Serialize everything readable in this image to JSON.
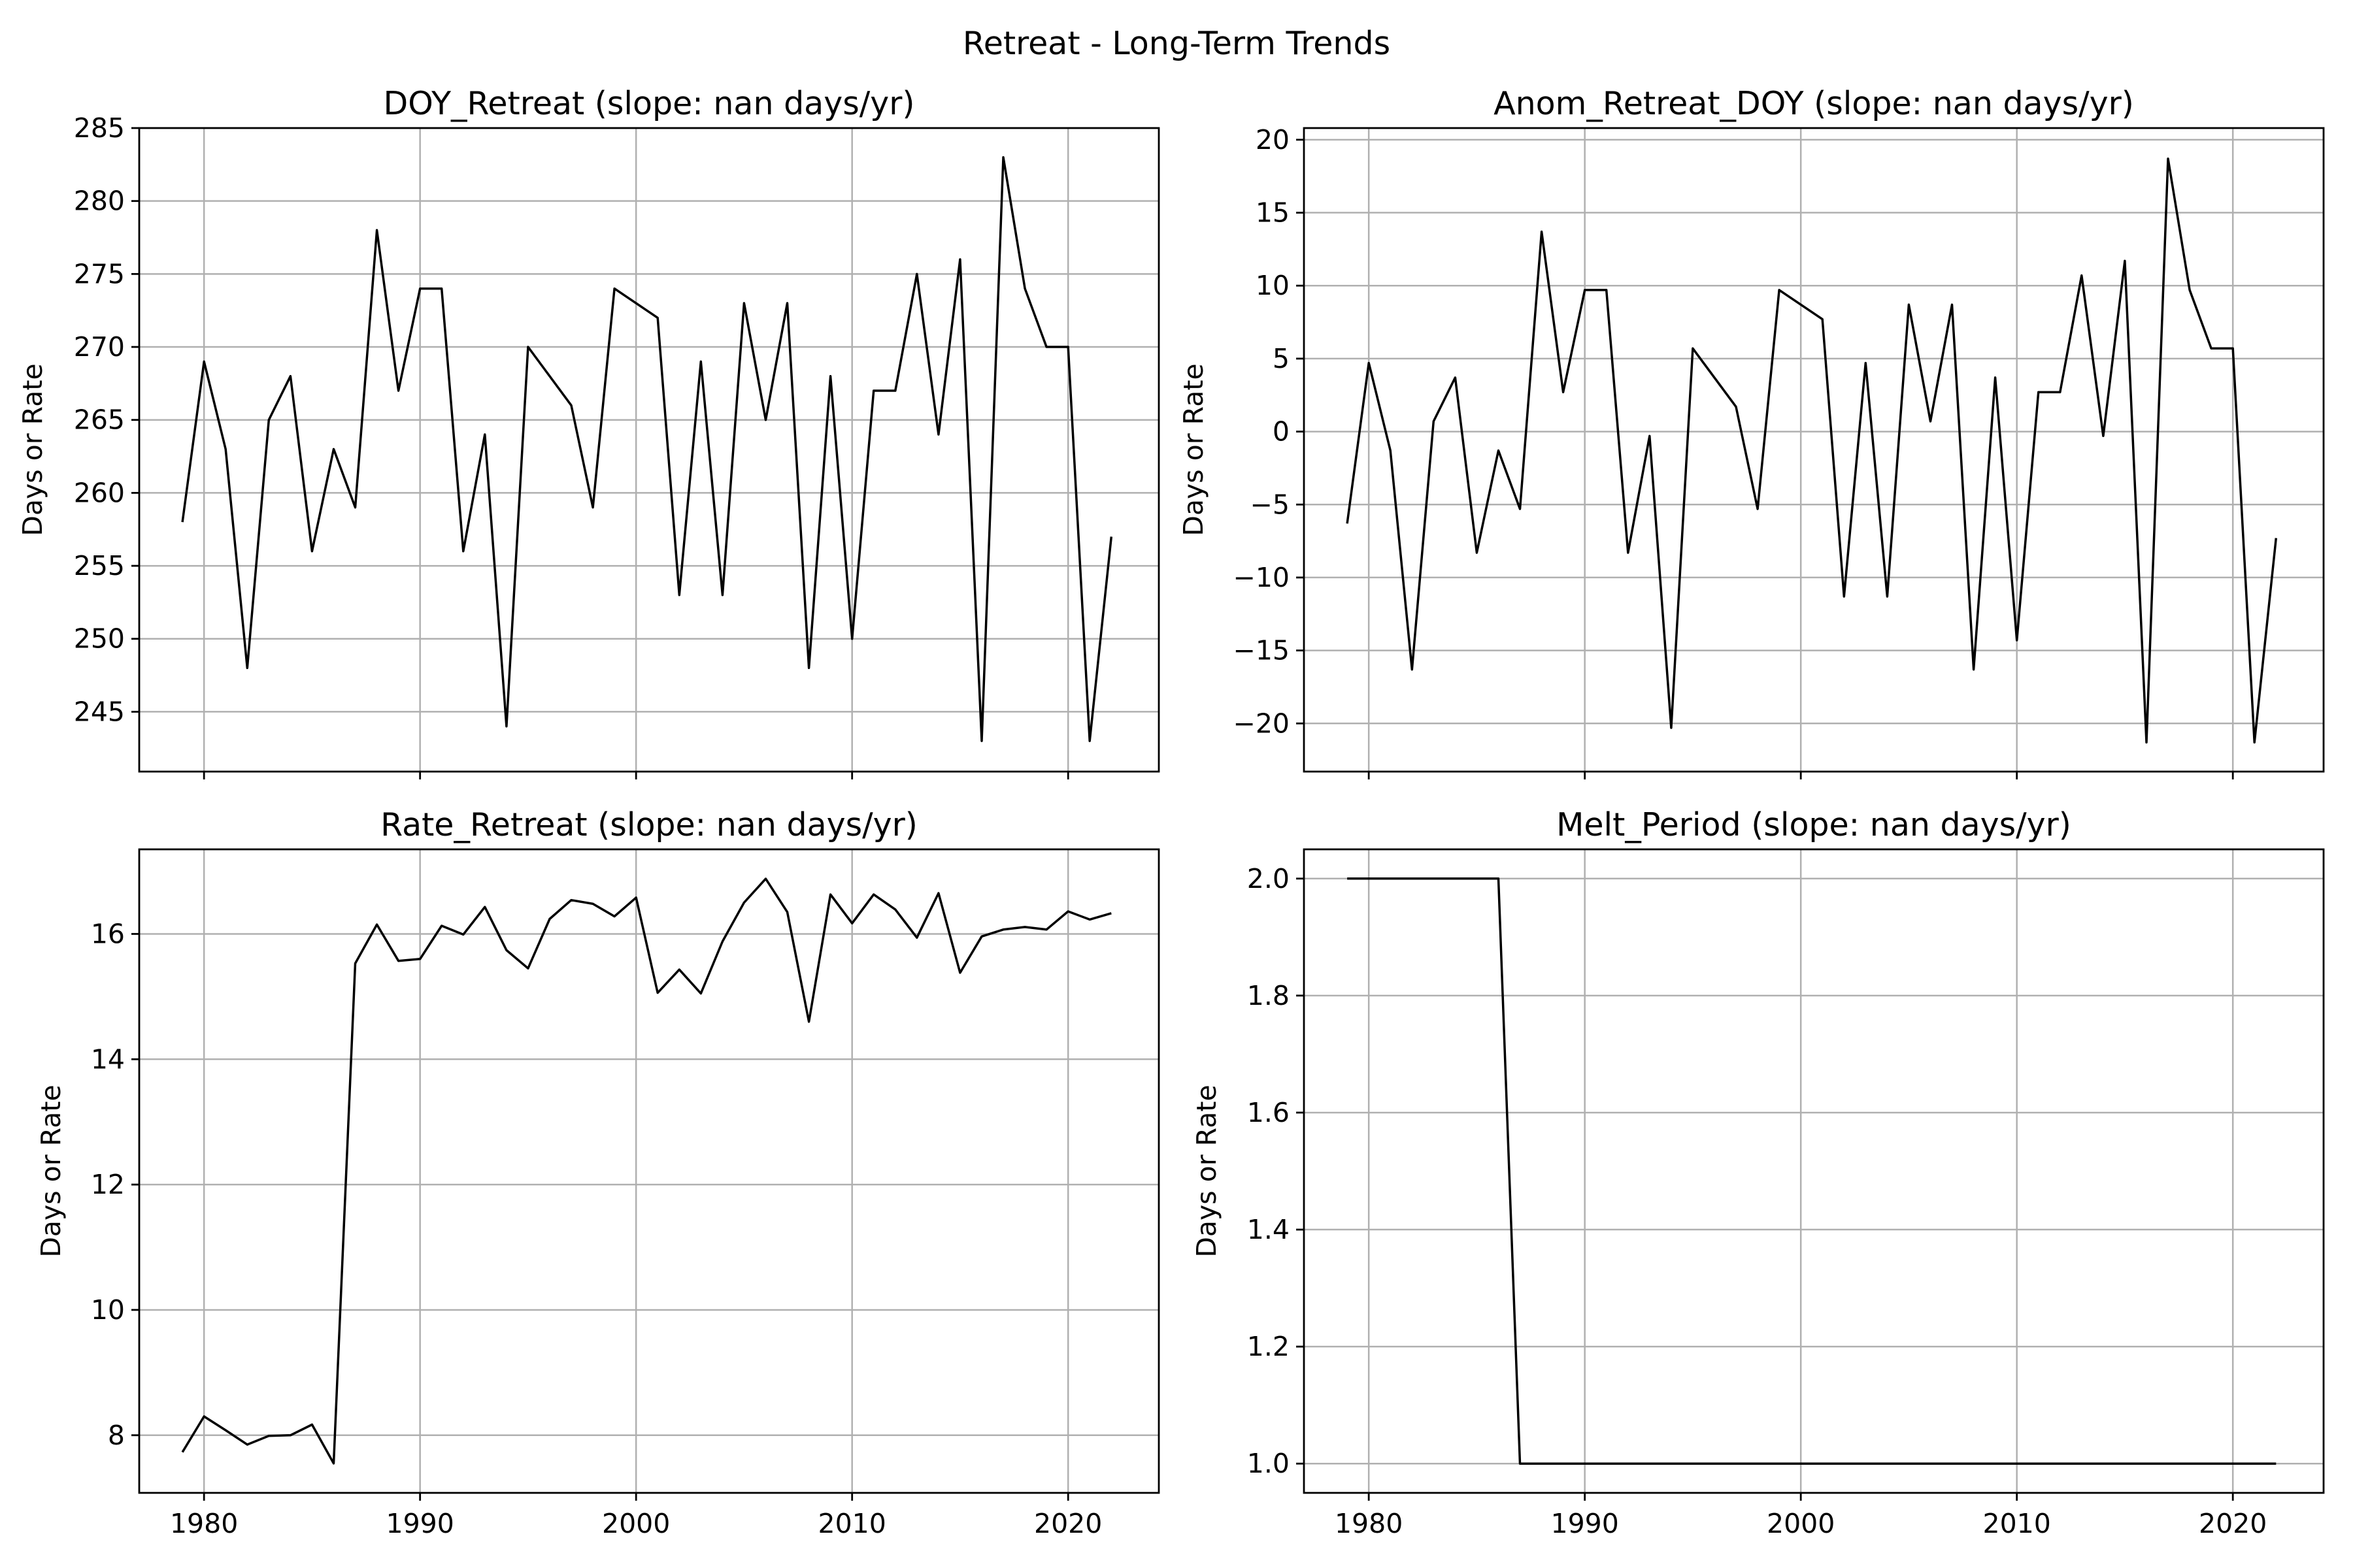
{
  "figure_title": "Retreat - Long-Term Trends",
  "chart_data": [
    {
      "type": "line",
      "title": "DOY_Retreat (slope: nan days/yr)",
      "xlabel": "",
      "ylabel": "Days or Rate",
      "xlim": [
        1977,
        2024.2
      ],
      "ylim": [
        240.9,
        285.0
      ],
      "xticks": [
        1980,
        1990,
        2000,
        2010,
        2020
      ],
      "xtick_labels": [
        "",
        "",
        "",
        "",
        ""
      ],
      "yticks": [
        245,
        250,
        255,
        260,
        265,
        270,
        275,
        280,
        285
      ],
      "ytick_labels": [
        "245",
        "250",
        "255",
        "260",
        "265",
        "270",
        "275",
        "280",
        "285"
      ],
      "grid": true,
      "line_color": "#000000",
      "x": [
        1979,
        1980,
        1981,
        1982,
        1983,
        1984,
        1985,
        1986,
        1987,
        1988,
        1989,
        1990,
        1991,
        1992,
        1993,
        1994,
        1995,
        1997,
        1998,
        1999,
        2001,
        2002,
        2003,
        2004,
        2005,
        2006,
        2007,
        2008,
        2009,
        2010,
        2011,
        2012,
        2013,
        2014,
        2015,
        2016,
        2017,
        2018,
        2019,
        2020,
        2021,
        2022
      ],
      "values": [
        258,
        269,
        263,
        248,
        265,
        268,
        256,
        263,
        259,
        278,
        267,
        274,
        274,
        256,
        264,
        244,
        270,
        266,
        259,
        274,
        272,
        253,
        269,
        253,
        273,
        265,
        273,
        248,
        268,
        250,
        267,
        267,
        275,
        264,
        276,
        243,
        283,
        274,
        270,
        270,
        243,
        257
      ]
    },
    {
      "type": "line",
      "title": "Anom_Retreat_DOY (slope: nan days/yr)",
      "xlabel": "",
      "ylabel": "Days or Rate",
      "xlim": [
        1977,
        2024.2
      ],
      "ylim": [
        -23.3,
        20.8
      ],
      "xticks": [
        1980,
        1990,
        2000,
        2010,
        2020
      ],
      "xtick_labels": [
        "",
        "",
        "",
        "",
        ""
      ],
      "yticks": [
        -20,
        -15,
        -10,
        -5,
        0,
        5,
        10,
        15,
        20
      ],
      "ytick_labels": [
        "−20",
        "−15",
        "−10",
        "−5",
        "0",
        "5",
        "10",
        "15",
        "20"
      ],
      "grid": true,
      "line_color": "#000000",
      "x": [
        1979,
        1980,
        1981,
        1982,
        1983,
        1984,
        1985,
        1986,
        1987,
        1988,
        1989,
        1990,
        1991,
        1992,
        1993,
        1994,
        1995,
        1997,
        1998,
        1999,
        2001,
        2002,
        2003,
        2004,
        2005,
        2006,
        2007,
        2008,
        2009,
        2010,
        2011,
        2012,
        2013,
        2014,
        2015,
        2016,
        2017,
        2018,
        2019,
        2020,
        2021,
        2022
      ],
      "values": [
        -6.3,
        4.7,
        -1.3,
        -16.3,
        0.7,
        3.7,
        -8.3,
        -1.3,
        -5.3,
        13.7,
        2.7,
        9.7,
        9.7,
        -8.3,
        -0.3,
        -20.3,
        5.7,
        1.7,
        -5.3,
        9.7,
        7.7,
        -11.3,
        4.7,
        -11.3,
        8.7,
        0.7,
        8.7,
        -16.3,
        3.7,
        -14.3,
        2.7,
        2.7,
        10.7,
        -0.3,
        11.7,
        -21.3,
        18.7,
        9.7,
        5.7,
        5.7,
        -21.3,
        -7.3
      ]
    },
    {
      "type": "line",
      "title": "Rate_Retreat (slope: nan days/yr)",
      "xlabel": "",
      "ylabel": "Days or Rate",
      "xlim": [
        1977,
        2024.2
      ],
      "ylim": [
        7.08,
        17.35
      ],
      "xticks": [
        1980,
        1990,
        2000,
        2010,
        2020
      ],
      "xtick_labels": [
        "1980",
        "1990",
        "2000",
        "2010",
        "2020"
      ],
      "yticks": [
        8,
        10,
        12,
        14,
        16
      ],
      "ytick_labels": [
        "8",
        "10",
        "12",
        "14",
        "16"
      ],
      "grid": true,
      "line_color": "#000000",
      "x": [
        1979,
        1980,
        1981,
        1982,
        1983,
        1984,
        1985,
        1986,
        1987,
        1988,
        1989,
        1990,
        1991,
        1992,
        1993,
        1994,
        1995,
        1996,
        1997,
        1998,
        1999,
        2000,
        2001,
        2002,
        2003,
        2004,
        2005,
        2006,
        2007,
        2008,
        2009,
        2010,
        2011,
        2012,
        2013,
        2014,
        2015,
        2016,
        2017,
        2018,
        2019,
        2020,
        2021,
        2022
      ],
      "values": [
        7.73,
        8.3,
        8.08,
        7.85,
        7.99,
        8.0,
        8.17,
        7.55,
        15.53,
        16.15,
        15.57,
        15.6,
        16.13,
        15.99,
        16.43,
        15.74,
        15.45,
        16.24,
        16.54,
        16.48,
        16.28,
        16.58,
        15.06,
        15.43,
        15.05,
        15.88,
        16.5,
        16.88,
        16.35,
        14.6,
        16.63,
        16.17,
        16.63,
        16.39,
        15.94,
        16.65,
        15.38,
        15.96,
        16.07,
        16.11,
        16.07,
        16.36,
        16.23,
        16.33
      ]
    },
    {
      "type": "line",
      "title": "Melt_Period (slope: nan days/yr)",
      "xlabel": "",
      "ylabel": "Days or Rate",
      "xlim": [
        1977,
        2024.2
      ],
      "ylim": [
        0.95,
        2.05
      ],
      "xticks": [
        1980,
        1990,
        2000,
        2010,
        2020
      ],
      "xtick_labels": [
        "1980",
        "1990",
        "2000",
        "2010",
        "2020"
      ],
      "yticks": [
        1.0,
        1.2,
        1.4,
        1.6,
        1.8,
        2.0
      ],
      "ytick_labels": [
        "1.0",
        "1.2",
        "1.4",
        "1.6",
        "1.8",
        "2.0"
      ],
      "grid": true,
      "line_color": "#000000",
      "x": [
        1979,
        1980,
        1981,
        1982,
        1983,
        1984,
        1985,
        1986,
        1987,
        1988,
        1989,
        1990,
        1991,
        1992,
        1993,
        1994,
        1995,
        1996,
        1997,
        1998,
        1999,
        2000,
        2001,
        2002,
        2003,
        2004,
        2005,
        2006,
        2007,
        2008,
        2009,
        2010,
        2011,
        2012,
        2013,
        2014,
        2015,
        2016,
        2017,
        2018,
        2019,
        2020,
        2021,
        2022
      ],
      "values": [
        2,
        2,
        2,
        2,
        2,
        2,
        2,
        2,
        1,
        1,
        1,
        1,
        1,
        1,
        1,
        1,
        1,
        1,
        1,
        1,
        1,
        1,
        1,
        1,
        1,
        1,
        1,
        1,
        1,
        1,
        1,
        1,
        1,
        1,
        1,
        1,
        1,
        1,
        1,
        1,
        1,
        1,
        1,
        1
      ]
    }
  ]
}
